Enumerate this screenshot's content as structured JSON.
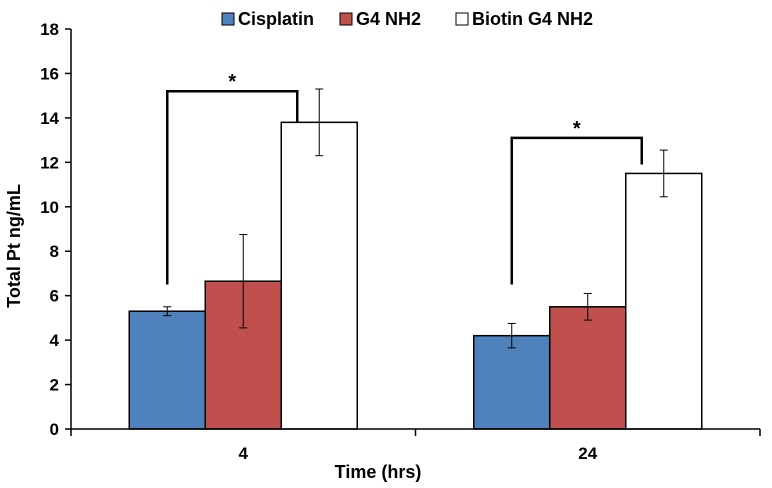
{
  "chart_data": {
    "type": "bar",
    "title": "",
    "xlabel": "Time (hrs)",
    "ylabel": "Total Pt ng/mL",
    "categories": [
      "4",
      "24"
    ],
    "ylim": [
      0,
      18
    ],
    "ytick_step": 2,
    "legend_position": "top-center",
    "grid": false,
    "series": [
      {
        "name": "Cisplatin",
        "color": "#4F81BD",
        "values": [
          5.3,
          4.2
        ],
        "errors": [
          0.2,
          0.55
        ]
      },
      {
        "name": "G4 NH2",
        "color": "#C0504D",
        "values": [
          6.65,
          5.5
        ],
        "errors": [
          2.1,
          0.6
        ]
      },
      {
        "name": "Biotin G4 NH2",
        "color": "#FFFFFF",
        "values": [
          13.8,
          11.5
        ],
        "errors": [
          1.5,
          1.05
        ]
      }
    ],
    "annotations": [
      {
        "label": "*",
        "category": "4",
        "from_series": 0,
        "to_series": 2,
        "y_left": 6.5,
        "y_right": 13.8,
        "y_top": 15.2
      },
      {
        "label": "*",
        "category": "24",
        "from_series": 0,
        "to_series": 2,
        "y_left": 6.5,
        "y_right": 11.9,
        "y_top": 13.1
      }
    ]
  }
}
